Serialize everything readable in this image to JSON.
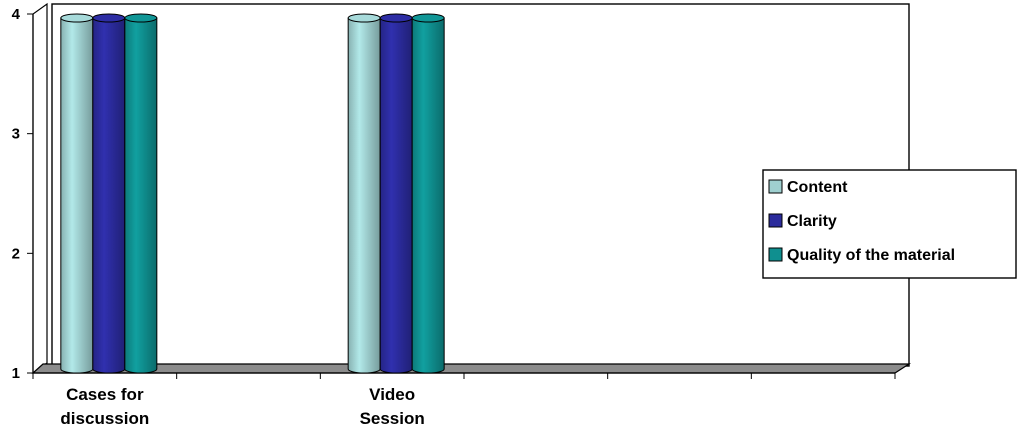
{
  "chart_data": {
    "type": "bar",
    "view": "3d-cylinder",
    "categories": [
      [
        "Cases for",
        "discussion"
      ],
      [],
      [
        "Video",
        "Session"
      ],
      [],
      [],
      []
    ],
    "series": [
      {
        "name": "Content",
        "color": "#9fd0d0",
        "values": [
          4,
          null,
          4,
          null,
          null,
          null
        ]
      },
      {
        "name": "Clarity",
        "color": "#2b2b9c",
        "values": [
          4,
          null,
          4,
          null,
          null,
          null
        ]
      },
      {
        "name": "Quality of the material",
        "color": "#0f8f8f",
        "values": [
          4,
          null,
          4,
          null,
          null,
          null
        ]
      }
    ],
    "yticks": [
      1,
      2,
      3,
      4
    ],
    "ylim": [
      1,
      4
    ],
    "floor_color": "#8c8c8c",
    "legend_position": "right"
  }
}
